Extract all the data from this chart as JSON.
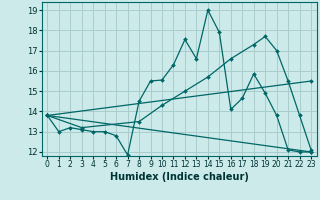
{
  "xlabel": "Humidex (Indice chaleur)",
  "bg_color": "#cceaea",
  "grid_color": "#aacccc",
  "line_color": "#006666",
  "xlim": [
    -0.5,
    23.5
  ],
  "ylim": [
    11.8,
    19.4
  ],
  "yticks": [
    12,
    13,
    14,
    15,
    16,
    17,
    18,
    19
  ],
  "xticks": [
    0,
    1,
    2,
    3,
    4,
    5,
    6,
    7,
    8,
    9,
    10,
    11,
    12,
    13,
    14,
    15,
    16,
    17,
    18,
    19,
    20,
    21,
    22,
    23
  ],
  "lines": [
    {
      "x": [
        0,
        1,
        2,
        3,
        4,
        5,
        6,
        7,
        8,
        9,
        10,
        11,
        12,
        13,
        14,
        15,
        16,
        17,
        18,
        19,
        20,
        21,
        22,
        23
      ],
      "y": [
        13.8,
        13.0,
        13.2,
        13.1,
        13.0,
        13.0,
        12.8,
        11.85,
        14.5,
        15.5,
        15.55,
        16.3,
        17.55,
        16.6,
        19.0,
        17.9,
        14.1,
        14.65,
        15.85,
        14.9,
        13.8,
        12.1,
        12.0,
        12.0
      ]
    },
    {
      "x": [
        0,
        3,
        8,
        10,
        12,
        14,
        16,
        18,
        19,
        20,
        21,
        22,
        23
      ],
      "y": [
        13.8,
        13.2,
        13.5,
        14.3,
        15.0,
        15.7,
        16.6,
        17.3,
        17.7,
        17.0,
        15.5,
        13.8,
        12.1
      ]
    },
    {
      "x": [
        0,
        23
      ],
      "y": [
        13.8,
        15.5
      ]
    },
    {
      "x": [
        0,
        23
      ],
      "y": [
        13.8,
        12.0
      ]
    }
  ]
}
